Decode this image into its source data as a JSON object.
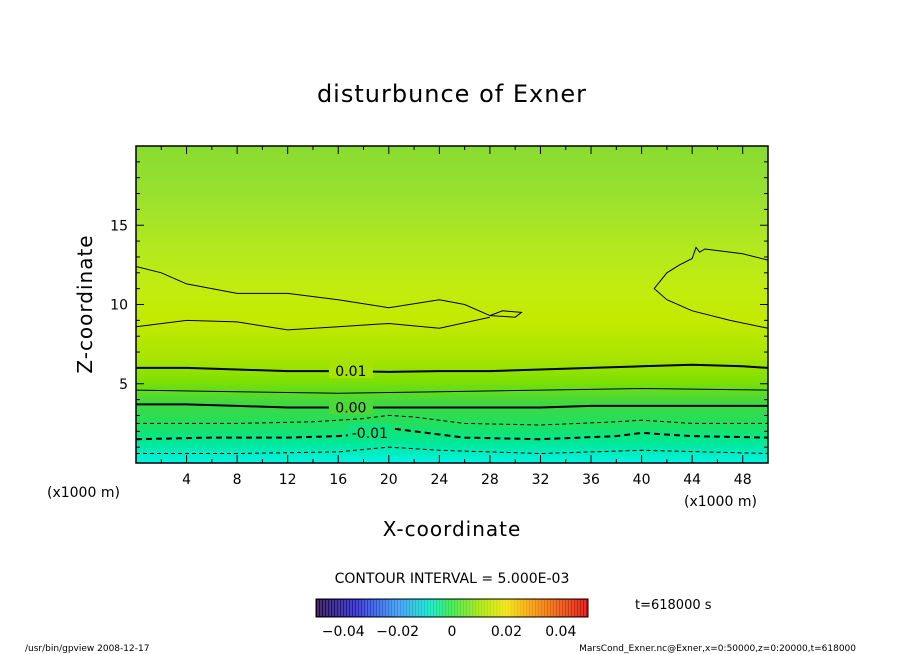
{
  "chart_data": {
    "type": "heatmap",
    "title": "disturbunce of Exner",
    "xlabel": "X-coordinate",
    "ylabel": "Z-coordinate",
    "x_unit": "(x1000 m)",
    "y_unit": "(x1000 m)",
    "xlim": [
      0,
      50
    ],
    "ylim": [
      0,
      20
    ],
    "x_ticks": [
      4,
      8,
      12,
      16,
      20,
      24,
      28,
      32,
      36,
      40,
      44,
      48
    ],
    "y_ticks": [
      5,
      10,
      15
    ],
    "contour_interval_text": "CONTOUR INTERVAL = 5.000E-03",
    "contour_labels": [
      {
        "text": "0.01",
        "x": 17,
        "z": 5.8
      },
      {
        "text": "0.00",
        "x": 17,
        "z": 3.5
      },
      {
        "text": "-0.01",
        "x": 18.5,
        "z": 1.9
      }
    ],
    "contours": [
      {
        "level": 0.01,
        "style": "thick",
        "points": [
          [
            0,
            6.0
          ],
          [
            4,
            6.0
          ],
          [
            8,
            5.9
          ],
          [
            12,
            5.8
          ],
          [
            16,
            5.8
          ],
          [
            20,
            5.75
          ],
          [
            24,
            5.8
          ],
          [
            28,
            5.8
          ],
          [
            32,
            5.9
          ],
          [
            36,
            6.0
          ],
          [
            40,
            6.1
          ],
          [
            44,
            6.2
          ],
          [
            48,
            6.1
          ],
          [
            50,
            6.0
          ]
        ]
      },
      {
        "level": 0.005,
        "style": "thin",
        "points": [
          [
            0,
            4.6
          ],
          [
            8,
            4.5
          ],
          [
            16,
            4.4
          ],
          [
            24,
            4.5
          ],
          [
            32,
            4.6
          ],
          [
            40,
            4.7
          ],
          [
            50,
            4.6
          ]
        ]
      },
      {
        "level": 0.0,
        "style": "thick",
        "points": [
          [
            0,
            3.7
          ],
          [
            4,
            3.7
          ],
          [
            8,
            3.6
          ],
          [
            12,
            3.5
          ],
          [
            16,
            3.5
          ],
          [
            20,
            3.5
          ],
          [
            24,
            3.5
          ],
          [
            28,
            3.5
          ],
          [
            32,
            3.5
          ],
          [
            36,
            3.6
          ],
          [
            40,
            3.6
          ],
          [
            44,
            3.6
          ],
          [
            48,
            3.6
          ],
          [
            50,
            3.6
          ]
        ]
      },
      {
        "level": -0.005,
        "style": "dashed",
        "points": [
          [
            0,
            2.5
          ],
          [
            8,
            2.5
          ],
          [
            14,
            2.6
          ],
          [
            18,
            2.8
          ],
          [
            20,
            3.0
          ],
          [
            22,
            2.9
          ],
          [
            26,
            2.5
          ],
          [
            32,
            2.4
          ],
          [
            38,
            2.6
          ],
          [
            40,
            2.7
          ],
          [
            44,
            2.5
          ],
          [
            50,
            2.5
          ]
        ]
      },
      {
        "level": -0.01,
        "style": "dashed-thick",
        "points": [
          [
            0,
            1.5
          ],
          [
            6,
            1.6
          ],
          [
            12,
            1.6
          ],
          [
            16,
            1.7
          ],
          [
            19,
            1.9
          ],
          [
            20,
            2.2
          ],
          [
            22,
            2.0
          ],
          [
            26,
            1.6
          ],
          [
            32,
            1.5
          ],
          [
            38,
            1.7
          ],
          [
            40,
            1.9
          ],
          [
            44,
            1.7
          ],
          [
            50,
            1.6
          ]
        ]
      },
      {
        "level": -0.015,
        "style": "dashed",
        "points": [
          [
            0,
            0.6
          ],
          [
            8,
            0.6
          ],
          [
            16,
            0.7
          ],
          [
            20,
            1.0
          ],
          [
            24,
            0.8
          ],
          [
            32,
            0.6
          ],
          [
            40,
            0.8
          ],
          [
            50,
            0.6
          ]
        ]
      },
      {
        "level": 0.02,
        "style": "thin",
        "points": [
          [
            0,
            8.6
          ],
          [
            4,
            9.0
          ],
          [
            8,
            8.9
          ],
          [
            12,
            8.4
          ],
          [
            16,
            8.6
          ],
          [
            20,
            8.8
          ],
          [
            24,
            8.5
          ],
          [
            28,
            9.2
          ]
        ]
      },
      {
        "level": 0.02,
        "style": "thin",
        "points": [
          [
            0,
            12.4
          ],
          [
            2,
            12.0
          ],
          [
            4,
            11.3
          ],
          [
            6,
            11.0
          ],
          [
            8,
            10.7
          ],
          [
            12,
            10.7
          ],
          [
            16,
            10.3
          ],
          [
            20,
            9.8
          ],
          [
            24,
            10.3
          ],
          [
            26,
            10.0
          ],
          [
            28,
            9.3
          ]
        ]
      },
      {
        "level": 0.02,
        "style": "thin",
        "closed": true,
        "points": [
          [
            28,
            9.3
          ],
          [
            30,
            9.2
          ],
          [
            30.5,
            9.5
          ],
          [
            29,
            9.6
          ],
          [
            28,
            9.3
          ]
        ]
      },
      {
        "level": 0.02,
        "style": "thin",
        "points": [
          [
            50,
            8.5
          ],
          [
            47,
            9.0
          ],
          [
            44,
            9.6
          ],
          [
            42,
            10.3
          ],
          [
            41,
            11.0
          ],
          [
            42,
            12.0
          ],
          [
            43,
            12.5
          ],
          [
            44,
            12.9
          ],
          [
            44.3,
            13.6
          ],
          [
            44.6,
            13.3
          ],
          [
            45,
            13.5
          ],
          [
            48,
            13.2
          ],
          [
            50,
            12.8
          ]
        ]
      }
    ],
    "colorbar": {
      "ticks": [
        -0.04,
        -0.02,
        0,
        0.02,
        0.04
      ],
      "tick_labels": [
        "−0.04",
        "−0.02",
        "0",
        "0.02",
        "0.04"
      ],
      "range": [
        -0.05,
        0.05
      ]
    },
    "time_text": "t=618000 s",
    "footer_left": "/usr/bin/gpview  2008-12-17",
    "footer_right": "MarsCond_Exner.nc@Exner,x=0:50000,z=0:20000,t=618000",
    "colors": {
      "surface": "#00f0e0",
      "low": "#00e878",
      "mid": "#7ee000",
      "high": "#c8f000"
    }
  }
}
